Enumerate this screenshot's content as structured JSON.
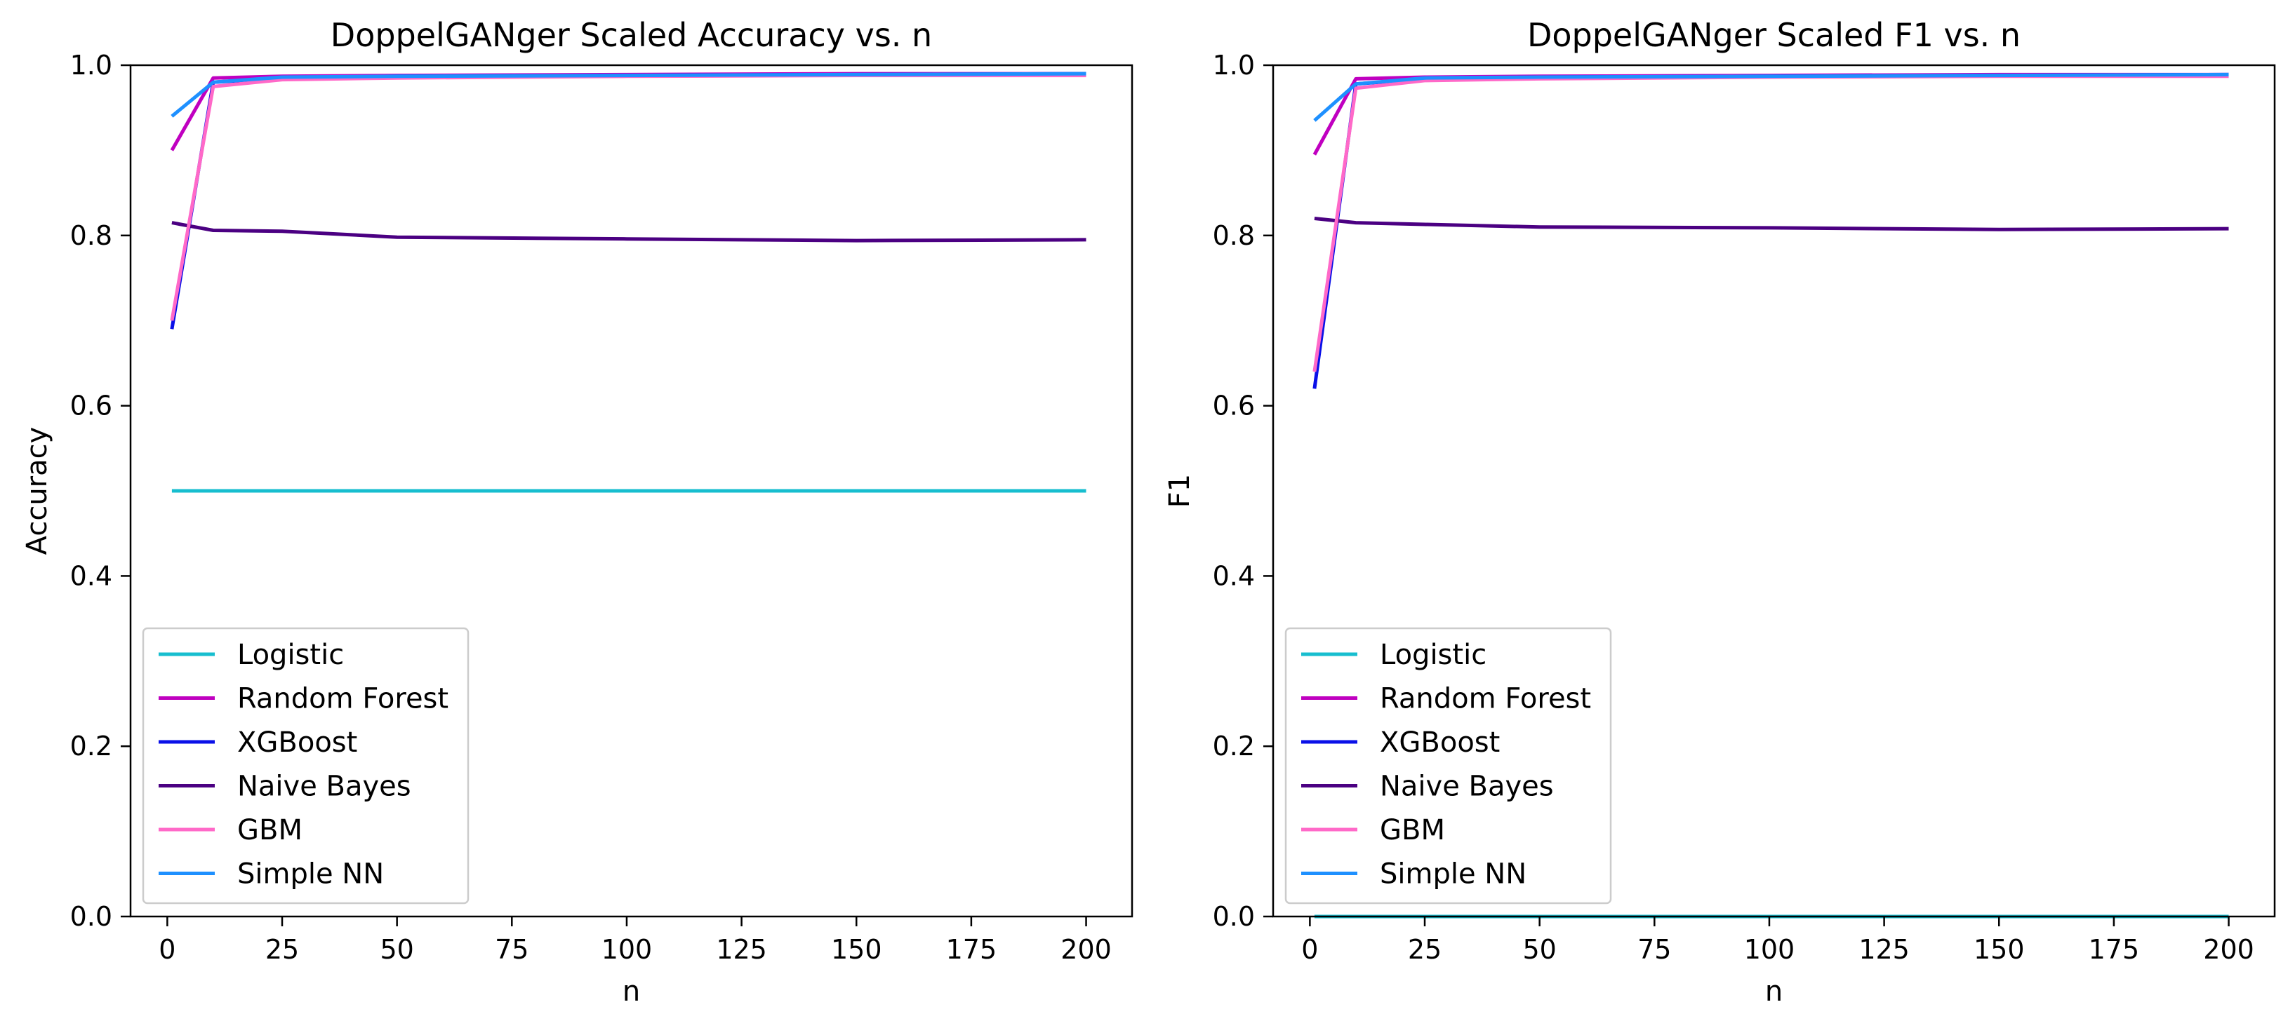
{
  "chart_data": [
    {
      "type": "line",
      "title": "DoppelGANger Scaled Accuracy vs. n",
      "xlabel": "n",
      "ylabel": "Accuracy",
      "xlim": [
        -8,
        210
      ],
      "ylim": [
        0.0,
        1.0
      ],
      "xticks": [
        0,
        25,
        50,
        75,
        100,
        125,
        150,
        175,
        200
      ],
      "xtick_labels": [
        "0",
        "25",
        "50",
        "75",
        "100",
        "125",
        "150",
        "175",
        "200"
      ],
      "yticks": [
        0.0,
        0.2,
        0.4,
        0.6,
        0.8,
        1.0
      ],
      "ytick_labels": [
        "0.0",
        "0.2",
        "0.4",
        "0.6",
        "0.8",
        "1.0"
      ],
      "grid": false,
      "legend_position": "lower-left",
      "x": [
        1,
        10,
        25,
        50,
        100,
        150,
        200
      ],
      "series": [
        {
          "name": "Logistic",
          "color": "#17becf",
          "values": [
            0.5,
            0.5,
            0.5,
            0.5,
            0.5,
            0.5,
            0.5
          ]
        },
        {
          "name": "Random Forest",
          "color": "#c000c0",
          "values": [
            0.9,
            0.985,
            0.987,
            0.988,
            0.989,
            0.99,
            0.99
          ]
        },
        {
          "name": "XGBoost",
          "color": "#0a10e8",
          "values": [
            0.69,
            0.98,
            0.985,
            0.987,
            0.988,
            0.989,
            0.99
          ]
        },
        {
          "name": "Naive Bayes",
          "color": "#4b0082",
          "values": [
            0.815,
            0.806,
            0.805,
            0.798,
            0.796,
            0.794,
            0.795
          ]
        },
        {
          "name": "GBM",
          "color": "#ff69c8",
          "values": [
            0.7,
            0.975,
            0.983,
            0.985,
            0.987,
            0.988,
            0.988
          ]
        },
        {
          "name": "Simple NN",
          "color": "#1e90ff",
          "values": [
            0.94,
            0.98,
            0.986,
            0.987,
            0.988,
            0.989,
            0.99
          ]
        }
      ]
    },
    {
      "type": "line",
      "title": "DoppelGANger Scaled F1 vs. n",
      "xlabel": "n",
      "ylabel": "F1",
      "xlim": [
        -8,
        210
      ],
      "ylim": [
        0.0,
        1.0
      ],
      "xticks": [
        0,
        25,
        50,
        75,
        100,
        125,
        150,
        175,
        200
      ],
      "xtick_labels": [
        "0",
        "25",
        "50",
        "75",
        "100",
        "125",
        "150",
        "175",
        "200"
      ],
      "yticks": [
        0.0,
        0.2,
        0.4,
        0.6,
        0.8,
        1.0
      ],
      "ytick_labels": [
        "0.0",
        "0.2",
        "0.4",
        "0.6",
        "0.8",
        "1.0"
      ],
      "grid": false,
      "legend_position": "lower-left",
      "x": [
        1,
        10,
        25,
        50,
        100,
        150,
        200
      ],
      "series": [
        {
          "name": "Logistic",
          "color": "#17becf",
          "values": [
            0.0,
            0.0,
            0.0,
            0.0,
            0.0,
            0.0,
            0.0
          ]
        },
        {
          "name": "Random Forest",
          "color": "#c000c0",
          "values": [
            0.895,
            0.984,
            0.986,
            0.987,
            0.988,
            0.989,
            0.989
          ]
        },
        {
          "name": "XGBoost",
          "color": "#0a10e8",
          "values": [
            0.62,
            0.978,
            0.984,
            0.986,
            0.987,
            0.988,
            0.989
          ]
        },
        {
          "name": "Naive Bayes",
          "color": "#4b0082",
          "values": [
            0.82,
            0.815,
            0.813,
            0.81,
            0.809,
            0.807,
            0.808
          ]
        },
        {
          "name": "GBM",
          "color": "#ff69c8",
          "values": [
            0.64,
            0.973,
            0.982,
            0.984,
            0.986,
            0.987,
            0.987
          ]
        },
        {
          "name": "Simple NN",
          "color": "#1e90ff",
          "values": [
            0.935,
            0.978,
            0.985,
            0.986,
            0.987,
            0.988,
            0.989
          ]
        }
      ]
    }
  ]
}
